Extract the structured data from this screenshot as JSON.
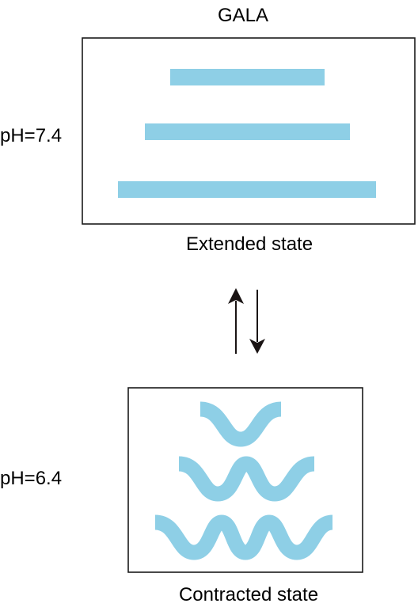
{
  "title": "GALA",
  "top_panel": {
    "ph_label": "pH=7.4",
    "caption": "Extended state"
  },
  "bottom_panel": {
    "ph_label": "pH=6.4",
    "caption": "Contracted state"
  },
  "colors": {
    "peptide": "#8ecfe6",
    "frame": "#1a1a1a",
    "arrow": "#1a1414",
    "text": "#000000"
  },
  "icons": {
    "equilibrium": "up-down-arrows-icon"
  }
}
